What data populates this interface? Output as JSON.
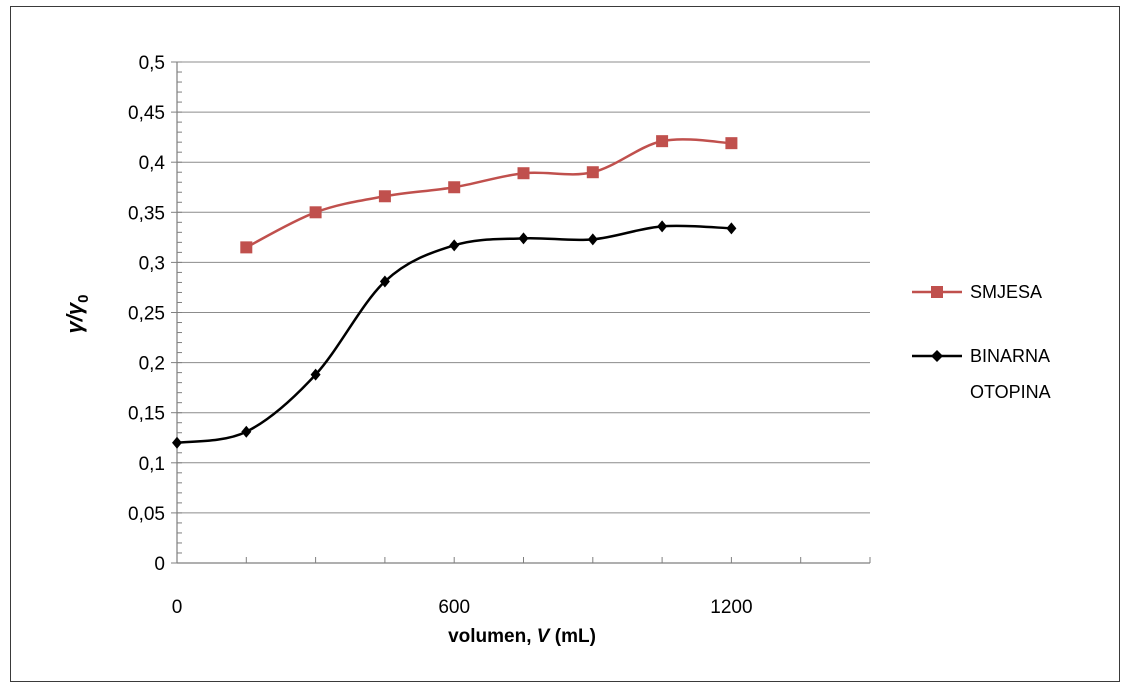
{
  "chart_data": {
    "type": "line",
    "xlabel_text": "volumen, ",
    "xlabel_var": "V",
    "xlabel_unit": " (mL)",
    "ylabel_var": "γ/γ",
    "ylabel_sub": "0",
    "x_ticks": [
      "0",
      "600",
      "1200"
    ],
    "y_ticks": [
      "0",
      "0,05",
      "0,1",
      "0,15",
      "0,2",
      "0,25",
      "0,3",
      "0,35",
      "0,4",
      "0,45",
      "0,5"
    ],
    "xlim": [
      0,
      1500
    ],
    "ylim": [
      0,
      0.5
    ],
    "grid": true,
    "legend_position": "right",
    "series": [
      {
        "name": "SMJESA",
        "color": "#c0504d",
        "marker": "square",
        "x": [
          150,
          300,
          450,
          600,
          750,
          900,
          1050,
          1200
        ],
        "y": [
          0.315,
          0.35,
          0.366,
          0.375,
          0.389,
          0.39,
          0.421,
          0.419
        ]
      },
      {
        "name": "BINARNA OTOPINA",
        "name_lines": [
          "BINARNA",
          "OTOPINA"
        ],
        "color": "#000000",
        "marker": "diamond",
        "x": [
          0,
          150,
          300,
          450,
          600,
          750,
          900,
          1050,
          1200
        ],
        "y": [
          0.12,
          0.131,
          0.188,
          0.281,
          0.317,
          0.324,
          0.323,
          0.336,
          0.334
        ]
      }
    ]
  }
}
